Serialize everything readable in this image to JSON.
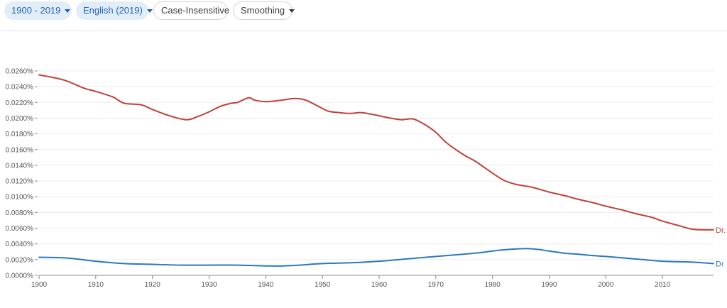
{
  "toolbar": {
    "year_range": "1900 - 2019",
    "corpus": "English (2019)",
    "case": "Case-Insensitive",
    "smoothing": "Smoothing"
  },
  "chart_data": {
    "type": "line",
    "title": "",
    "xlabel": "",
    "ylabel": "",
    "xlim": [
      1900,
      2019
    ],
    "ylim": [
      0,
      0.026
    ],
    "x_ticks": [
      1900,
      1910,
      1920,
      1930,
      1940,
      1950,
      1960,
      1970,
      1980,
      1990,
      2000,
      2010
    ],
    "y_ticks": [
      0,
      0.002,
      0.004,
      0.006,
      0.008,
      0.01,
      0.012,
      0.014,
      0.016,
      0.018,
      0.02,
      0.022,
      0.024,
      0.026
    ],
    "y_tick_labels": [
      "0.0000%",
      "0.0020%",
      "0.0040%",
      "0.0060%",
      "0.0080%",
      "0.0100%",
      "0.0120%",
      "0.0140%",
      "0.0160%",
      "0.0180%",
      "0.0200%",
      "0.0220%",
      "0.0240%",
      "0.0260%"
    ],
    "series": [
      {
        "name": "Dr.",
        "color": "#c0413b",
        "x": [
          1900,
          1903,
          1905,
          1908,
          1910,
          1913,
          1915,
          1918,
          1920,
          1923,
          1926,
          1928,
          1930,
          1932,
          1934,
          1935,
          1937,
          1938,
          1940,
          1943,
          1945,
          1947,
          1949,
          1951,
          1953,
          1955,
          1957,
          1960,
          1962,
          1964,
          1966,
          1968,
          1970,
          1972,
          1975,
          1977,
          1980,
          1982,
          1984,
          1987,
          1990,
          1993,
          1995,
          1998,
          2000,
          2003,
          2005,
          2008,
          2010,
          2013,
          2015,
          2017,
          2019
        ],
        "values": [
          0.0255,
          0.0251,
          0.0247,
          0.0238,
          0.0234,
          0.0227,
          0.0219,
          0.0217,
          0.0211,
          0.0203,
          0.0198,
          0.0202,
          0.0208,
          0.0215,
          0.0219,
          0.022,
          0.0226,
          0.0223,
          0.0221,
          0.0223,
          0.0225,
          0.0223,
          0.0216,
          0.0209,
          0.0207,
          0.0206,
          0.0207,
          0.0203,
          0.02,
          0.0198,
          0.0199,
          0.0192,
          0.0182,
          0.0168,
          0.0153,
          0.0145,
          0.013,
          0.0121,
          0.0116,
          0.0112,
          0.0106,
          0.0101,
          0.0097,
          0.0092,
          0.0088,
          0.0083,
          0.0079,
          0.0074,
          0.0069,
          0.0063,
          0.0059,
          0.0058,
          0.0058
        ]
      },
      {
        "name": "Dr",
        "color": "#2a78be",
        "x": [
          1900,
          1905,
          1910,
          1915,
          1920,
          1925,
          1930,
          1935,
          1940,
          1943,
          1946,
          1950,
          1955,
          1960,
          1965,
          1970,
          1975,
          1978,
          1980,
          1983,
          1986,
          1988,
          1990,
          1993,
          1995,
          1998,
          2000,
          2005,
          2010,
          2015,
          2019
        ],
        "values": [
          0.0023,
          0.0022,
          0.0018,
          0.0015,
          0.0014,
          0.0013,
          0.0013,
          0.0013,
          0.0012,
          0.0012,
          0.0013,
          0.0015,
          0.0016,
          0.0018,
          0.0021,
          0.0024,
          0.0027,
          0.0029,
          0.0031,
          0.0033,
          0.0034,
          0.0033,
          0.0031,
          0.0028,
          0.0027,
          0.0025,
          0.0024,
          0.0021,
          0.0018,
          0.0017,
          0.0015
        ]
      }
    ]
  }
}
